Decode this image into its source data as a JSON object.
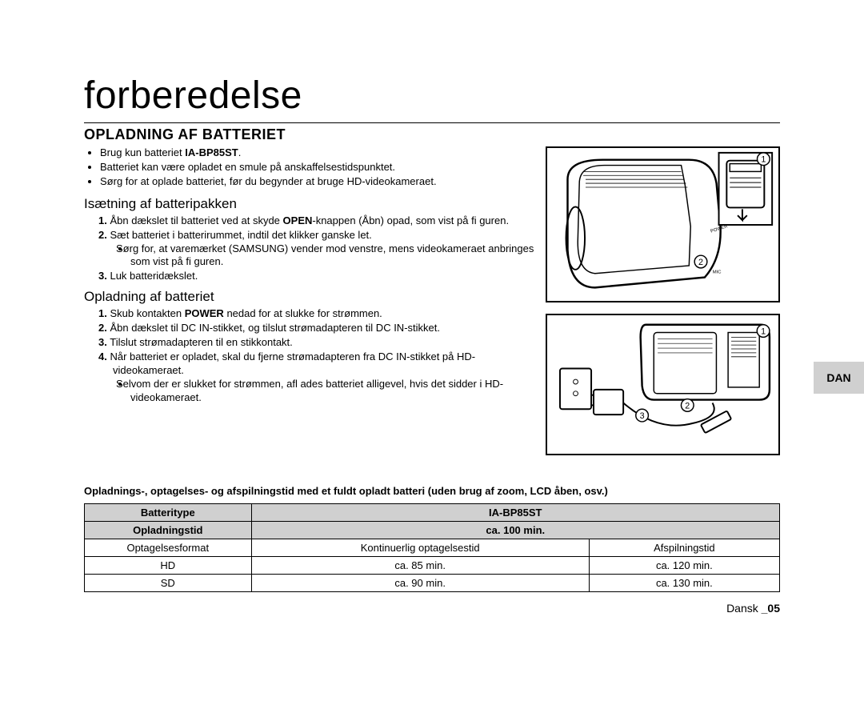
{
  "title": "forberedelse",
  "section_title": "OPLADNING AF BATTERIET",
  "intro_bullets": [
    "Brug kun batteriet <b>IA-BP85ST</b>.",
    "Batteriet kan være opladet en smule på anskaffelsestidspunktet.",
    "Sørg for at oplade batteriet, før du begynder at bruge HD-videokameraet."
  ],
  "sub1_title": "Isætning af batteripakken",
  "sub1_items": [
    "Åbn dækslet til batteriet ved at skyde <b>OPEN</b>-knappen (Åbn) opad, som vist på fi guren.",
    "Sæt batteriet i batterirummet, indtil det klikker ganske let.",
    "Luk batteridækslet."
  ],
  "sub1_inner": [
    "Sørg for, at varemærket (SAMSUNG) vender mod venstre, mens videokameraet anbringes som vist på fi guren."
  ],
  "sub2_title": "Opladning af batteriet",
  "sub2_items": [
    "Skub kontakten <b>POWER</b> nedad for at slukke for strømmen.",
    "Åbn dækslet til DC IN-stikket, og tilslut strømadapteren til DC IN-stikket.",
    "Tilslut strømadapteren til en stikkontakt.",
    "Når batteriet er opladet, skal du fjerne strømadapteren fra DC IN-stikket på HD-videokameraet."
  ],
  "sub2_inner": [
    "Selvom der er slukket for strømmen, afl ades batteriet alligevel, hvis det sidder i HD-videokameraet."
  ],
  "table_note": "Opladnings-, optagelses- og afspilningstid med et fuldt opladt batteri (uden brug af zoom, LCD åben, osv.)",
  "table": {
    "th_battery": "Batteritype",
    "th_model": "IA-BP85ST",
    "th_charge": "Opladningstid",
    "th_charge_val": "ca. 100 min.",
    "col1": "Optagelsesformat",
    "col2": "Kontinuerlig optagelsestid",
    "col3": "Afspilningstid",
    "rows": [
      {
        "c1": "HD",
        "c2": "ca. 85 min.",
        "c3": "ca. 120 min."
      },
      {
        "c1": "SD",
        "c2": "ca. 90 min.",
        "c3": "ca. 130 min."
      }
    ]
  },
  "tab_label": "DAN",
  "footer_lang": "Dansk ",
  "footer_page": "_05",
  "colors": {
    "line": "#000000",
    "shade": "#d0d0d0",
    "bg": "#ffffff"
  }
}
